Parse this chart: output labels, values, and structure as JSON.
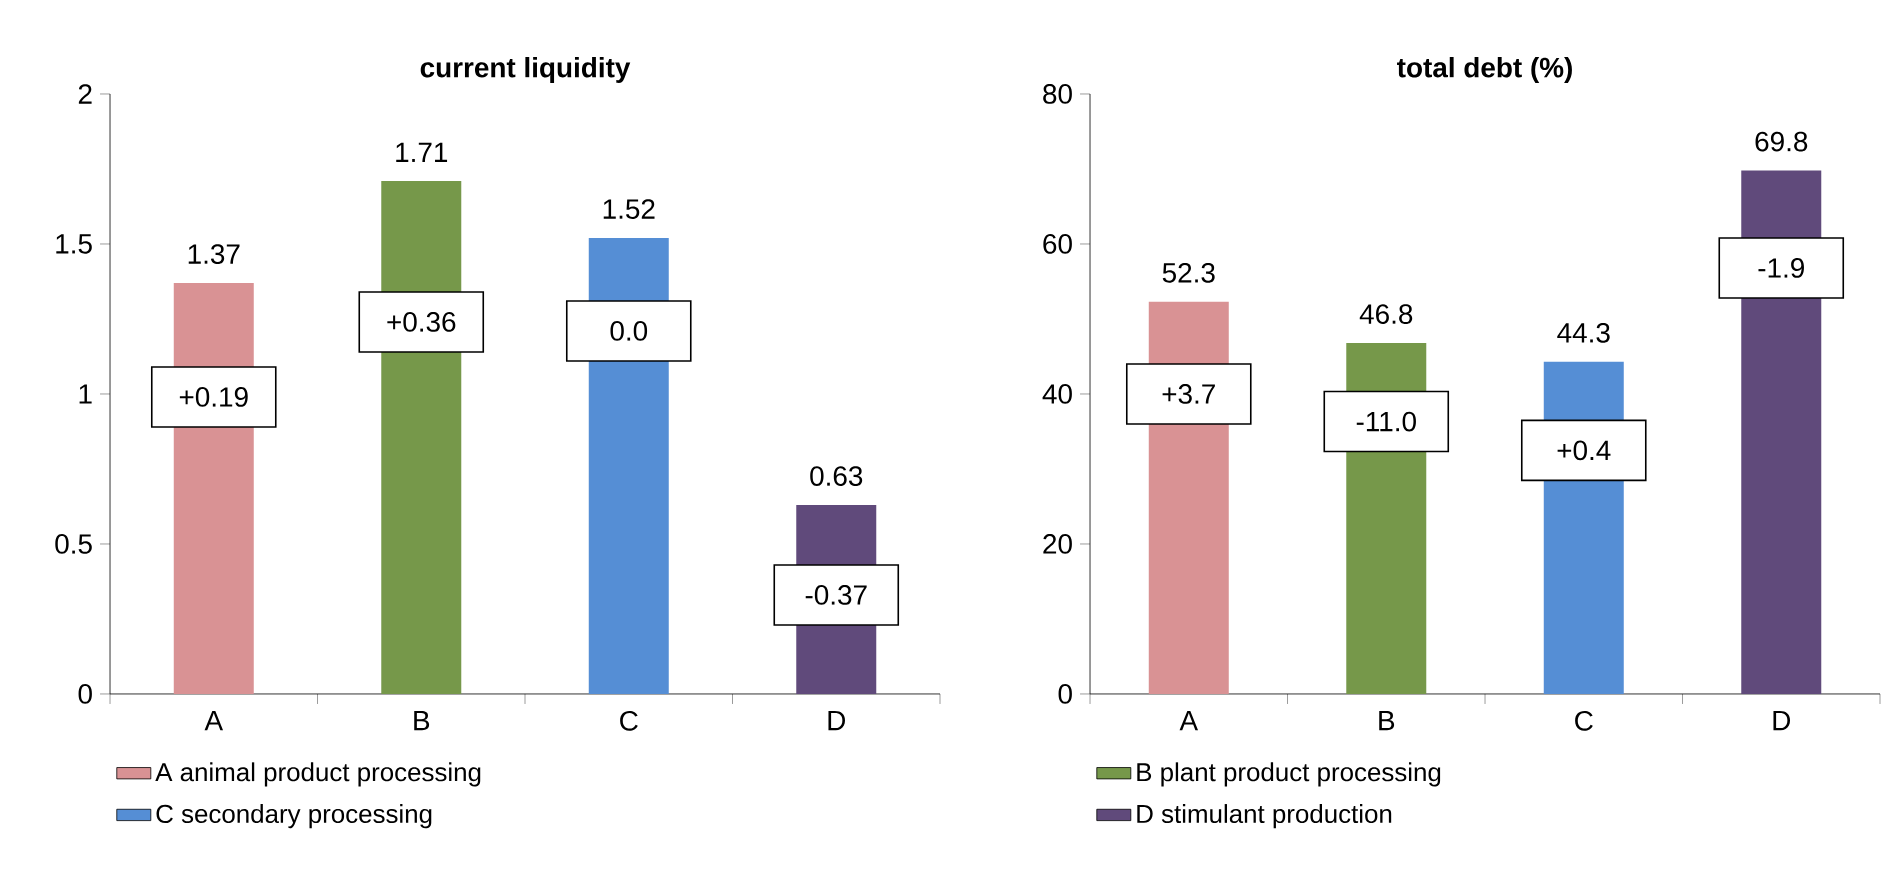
{
  "chart_data": [
    {
      "type": "bar",
      "title": "current liquidity",
      "categories": [
        "A",
        "B",
        "C",
        "D"
      ],
      "series": [
        {
          "name": "A animal product processing",
          "color": "#d99294",
          "values": [
            1.37,
            null,
            null,
            null
          ]
        },
        {
          "color": "#76984a",
          "values": [
            null,
            1.71,
            null,
            null
          ]
        },
        {
          "name": "C secondary processing",
          "color": "#558ed5",
          "values": [
            null,
            null,
            1.52,
            null
          ]
        },
        {
          "color": "#604a7b",
          "values": [
            null,
            null,
            null,
            0.63
          ]
        }
      ],
      "ylim": [
        0,
        2
      ],
      "yticks": [
        0,
        0.5,
        1,
        1.5,
        2
      ],
      "data_labels": true,
      "legend": "bottom",
      "grid": false,
      "annotations": [
        "+0.19",
        "+0.36",
        "0.0",
        "-0.37"
      ]
    },
    {
      "type": "bar",
      "title": "total debt (%)",
      "categories": [
        "A",
        "B",
        "C",
        "D"
      ],
      "series": [
        {
          "color": "#d99294",
          "values": [
            52.3,
            null,
            null,
            null
          ]
        },
        {
          "name": "B plant product processing",
          "color": "#76984a",
          "values": [
            null,
            46.8,
            null,
            null
          ]
        },
        {
          "color": "#558ed5",
          "values": [
            null,
            null,
            44.3,
            null
          ]
        },
        {
          "name": "D stimulant production",
          "color": "#604a7b",
          "values": [
            null,
            null,
            null,
            69.8
          ]
        }
      ],
      "ylim": [
        0,
        80
      ],
      "yticks": [
        0,
        20,
        40,
        60,
        80
      ],
      "data_labels": true,
      "legend": "bottom",
      "grid": false,
      "annotations": [
        "+3.7",
        "-11.0",
        "+0.4",
        "-1.9"
      ]
    }
  ]
}
